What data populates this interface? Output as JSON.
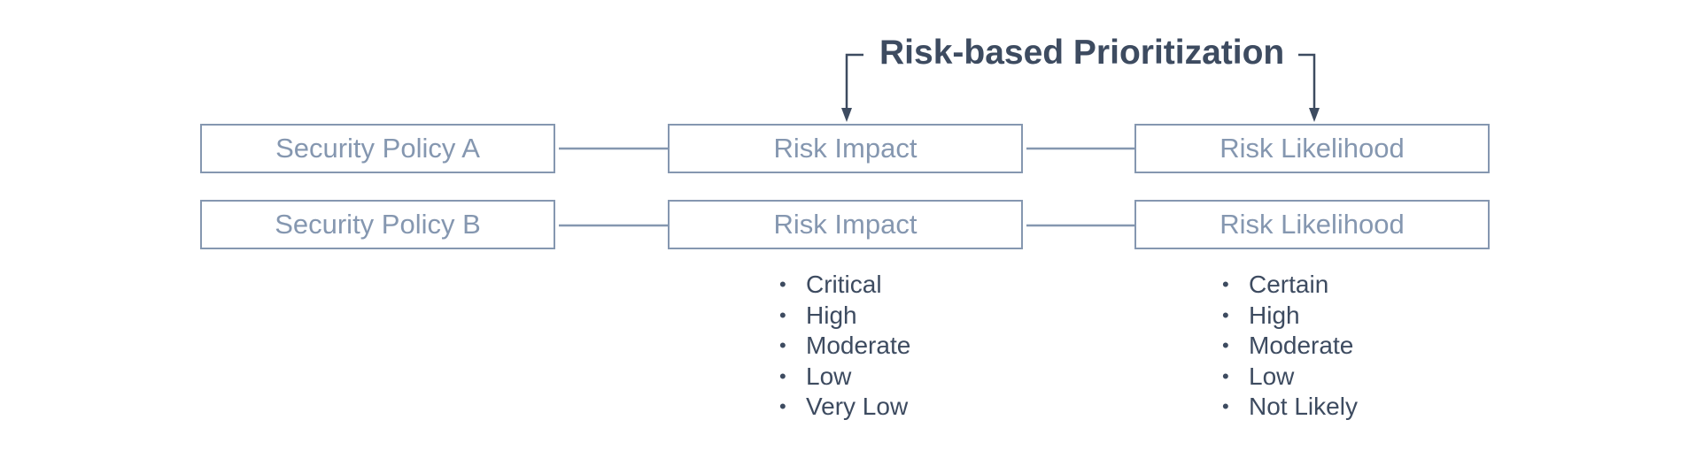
{
  "title": "Risk-based Prioritization",
  "rows": [
    {
      "policy": "Security Policy A",
      "impact": "Risk Impact",
      "likelihood": "Risk Likelihood"
    },
    {
      "policy": "Security Policy B",
      "impact": "Risk Impact",
      "likelihood": "Risk Likelihood"
    }
  ],
  "impact_levels": [
    "Critical",
    "High",
    "Moderate",
    "Low",
    "Very Low"
  ],
  "likelihood_levels": [
    "Certain",
    "High",
    "Moderate",
    "Low",
    "Not Likely"
  ],
  "colors": {
    "box_border": "#8597b0",
    "box_text": "#8597b0",
    "title_text": "#3d4b60",
    "connector": "#3d4b60"
  }
}
